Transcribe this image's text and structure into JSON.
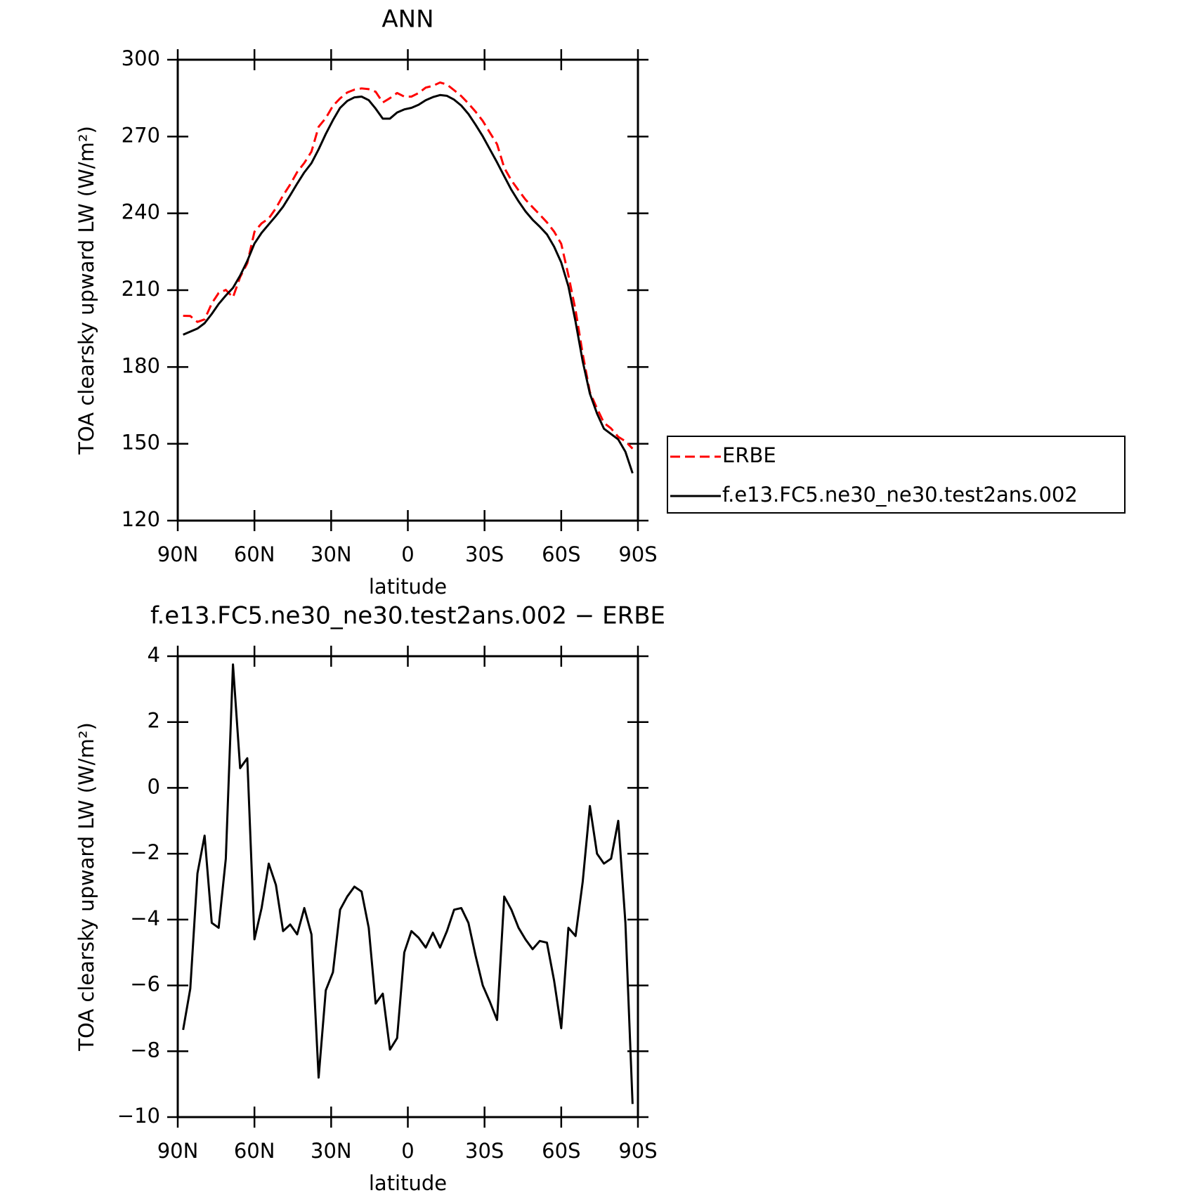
{
  "chart_data": [
    {
      "type": "line",
      "title": "ANN",
      "xlabel": "latitude",
      "ylabel": "TOA clearsky upward LW (W/m²)",
      "x": [
        87.9,
        85.1,
        82.3,
        79.5,
        76.7,
        74.0,
        71.2,
        68.4,
        65.6,
        62.8,
        60.0,
        57.2,
        54.4,
        51.6,
        48.8,
        46.0,
        43.3,
        40.5,
        37.7,
        34.9,
        32.1,
        29.3,
        26.5,
        23.7,
        20.9,
        18.1,
        15.3,
        12.6,
        9.8,
        7.0,
        4.2,
        1.4,
        -1.4,
        -4.2,
        -7.0,
        -9.8,
        -12.6,
        -15.3,
        -18.1,
        -20.9,
        -23.7,
        -26.5,
        -29.3,
        -32.1,
        -34.9,
        -37.7,
        -40.5,
        -43.3,
        -46.0,
        -48.8,
        -51.6,
        -54.4,
        -57.2,
        -60.0,
        -62.8,
        -65.6,
        -68.4,
        -71.2,
        -74.0,
        -76.7,
        -79.5,
        -82.3,
        -85.1,
        -87.9
      ],
      "xlim": [
        90,
        -90
      ],
      "xticks": [
        {
          "value": 90,
          "label": "90N"
        },
        {
          "value": 60,
          "label": "60N"
        },
        {
          "value": 30,
          "label": "30N"
        },
        0,
        {
          "value": -30,
          "label": "30S"
        },
        {
          "value": -60,
          "label": "60S"
        },
        {
          "value": -90,
          "label": "90S"
        }
      ],
      "ylim": [
        120,
        300
      ],
      "yticks": [
        120,
        150,
        180,
        210,
        240,
        270,
        300
      ],
      "legend": "right",
      "series": [
        {
          "name": "ERBE",
          "color": "#ff0000",
          "dashed": true,
          "values": [
            200.0,
            199.9,
            197.6,
            198.6,
            204.8,
            208.9,
            210.1,
            207.2,
            215.1,
            220.5,
            232.8,
            236.1,
            238.0,
            242.0,
            247.0,
            251.3,
            256.1,
            259.7,
            264.1,
            273.8,
            277.2,
            282.0,
            284.9,
            287.2,
            288.3,
            288.8,
            288.5,
            287.5,
            283.3,
            285.0,
            287.0,
            285.6,
            285.6,
            287.0,
            289.1,
            289.8,
            291.1,
            290.3,
            288.1,
            285.8,
            282.9,
            279.7,
            276.1,
            271.5,
            267.0,
            257.8,
            252.9,
            249.0,
            245.4,
            242.4,
            239.5,
            236.5,
            232.9,
            228.1,
            215.8,
            202.2,
            185.1,
            170.2,
            163.8,
            158.2,
            156.0,
            152.7,
            151.0,
            148.1
          ]
        },
        {
          "name": "f.e13.FC5.ne30_ne30.test2ans.002",
          "color": "#000000",
          "dashed": false,
          "values": [
            192.6,
            193.8,
            195.0,
            197.1,
            200.7,
            204.6,
            207.9,
            210.9,
            215.7,
            221.4,
            228.2,
            232.4,
            235.7,
            239.0,
            242.6,
            247.1,
            251.6,
            256.0,
            259.6,
            265.0,
            271.0,
            276.4,
            281.2,
            283.9,
            285.3,
            285.6,
            284.2,
            280.9,
            277.0,
            277.0,
            279.4,
            280.6,
            281.2,
            282.4,
            284.2,
            285.4,
            286.2,
            285.9,
            284.4,
            282.1,
            278.8,
            274.6,
            270.1,
            265.0,
            259.9,
            254.5,
            249.2,
            244.7,
            240.8,
            237.5,
            234.8,
            231.8,
            227.0,
            220.8,
            211.5,
            197.7,
            182.2,
            169.6,
            161.8,
            155.9,
            153.8,
            151.7,
            146.9,
            138.5
          ]
        }
      ]
    },
    {
      "type": "line",
      "title": "f.e13.FC5.ne30_ne30.test2ans.002 − ERBE",
      "xlabel": "latitude",
      "ylabel": "TOA clearsky upward LW (W/m²)",
      "x": [
        87.9,
        85.1,
        82.3,
        79.5,
        76.7,
        74.0,
        71.2,
        68.4,
        65.6,
        62.8,
        60.0,
        57.2,
        54.4,
        51.6,
        48.8,
        46.0,
        43.3,
        40.5,
        37.7,
        34.9,
        32.1,
        29.3,
        26.5,
        23.7,
        20.9,
        18.1,
        15.3,
        12.6,
        9.8,
        7.0,
        4.2,
        1.4,
        -1.4,
        -4.2,
        -7.0,
        -9.8,
        -12.6,
        -15.3,
        -18.1,
        -20.9,
        -23.7,
        -26.5,
        -29.3,
        -32.1,
        -34.9,
        -37.7,
        -40.5,
        -43.3,
        -46.0,
        -48.8,
        -51.6,
        -54.4,
        -57.2,
        -60.0,
        -62.8,
        -65.6,
        -68.4,
        -71.2,
        -74.0,
        -76.7,
        -79.5,
        -82.3,
        -85.1,
        -87.9
      ],
      "xlim": [
        90,
        -90
      ],
      "xticks": [
        {
          "value": 90,
          "label": "90N"
        },
        {
          "value": 60,
          "label": "60N"
        },
        {
          "value": 30,
          "label": "30N"
        },
        0,
        {
          "value": -30,
          "label": "30S"
        },
        {
          "value": -60,
          "label": "60S"
        },
        {
          "value": -90,
          "label": "90S"
        }
      ],
      "ylim": [
        -10,
        4
      ],
      "yticks": [
        {
          "value": -10,
          "label": "−10"
        },
        {
          "value": -8,
          "label": "−8"
        },
        {
          "value": -6,
          "label": "−6"
        },
        {
          "value": -4,
          "label": "−4"
        },
        {
          "value": -2,
          "label": "−2"
        },
        0,
        2,
        4
      ],
      "color": "#000000",
      "values": [
        -7.35,
        -6.1,
        -2.6,
        -1.45,
        -4.1,
        -4.25,
        -2.15,
        3.75,
        0.6,
        0.9,
        -4.6,
        -3.65,
        -2.3,
        -2.95,
        -4.35,
        -4.15,
        -4.45,
        -3.65,
        -4.45,
        -8.8,
        -6.15,
        -5.6,
        -3.7,
        -3.3,
        -3.0,
        -3.15,
        -4.25,
        -6.55,
        -6.25,
        -7.95,
        -7.6,
        -5.0,
        -4.35,
        -4.55,
        -4.85,
        -4.4,
        -4.85,
        -4.35,
        -3.7,
        -3.65,
        -4.1,
        -5.1,
        -6.0,
        -6.5,
        -7.05,
        -3.3,
        -3.7,
        -4.25,
        -4.6,
        -4.9,
        -4.65,
        -4.7,
        -5.85,
        -7.3,
        -4.25,
        -4.5,
        -2.85,
        -0.55,
        -2.0,
        -2.3,
        -2.15,
        -1.0,
        -4.1,
        -9.6
      ]
    }
  ]
}
